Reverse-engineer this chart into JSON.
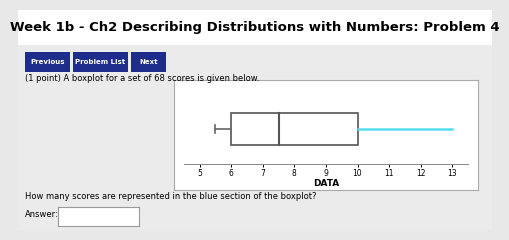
{
  "title": "Week 1b - Ch2 Describing Distributions with Numbers: Problem 4",
  "buttons": [
    "Previous",
    "Problem List",
    "Next"
  ],
  "problem_text": "(1 point) A boxplot for a set of 68 scores is given below.",
  "question_text": "How many scores are represented in the blue section of the boxplot?",
  "answer_label": "Answer:",
  "xlabel": "DATA",
  "xlim": [
    4.5,
    13.5
  ],
  "xticks": [
    5,
    6,
    7,
    8,
    9,
    10,
    11,
    12,
    13
  ],
  "whisker_low": 5.5,
  "q1": 6.0,
  "median": 7.5,
  "q3": 10.0,
  "whisker_high": 13.0,
  "box_color": "white",
  "box_edge_color": "#555555",
  "whisker_low_color": "#666666",
  "whisker_high_color": "#55ddee",
  "median_color": "#555555",
  "bg_color": "#e8e8e8",
  "card_color": "#ebebeb",
  "plot_bg_color": "#ffffff",
  "button_bg": "#1e2d8c",
  "button_text_color": "white",
  "title_fontsize": 9.5,
  "body_fontsize": 6,
  "answer_box_color": "white"
}
